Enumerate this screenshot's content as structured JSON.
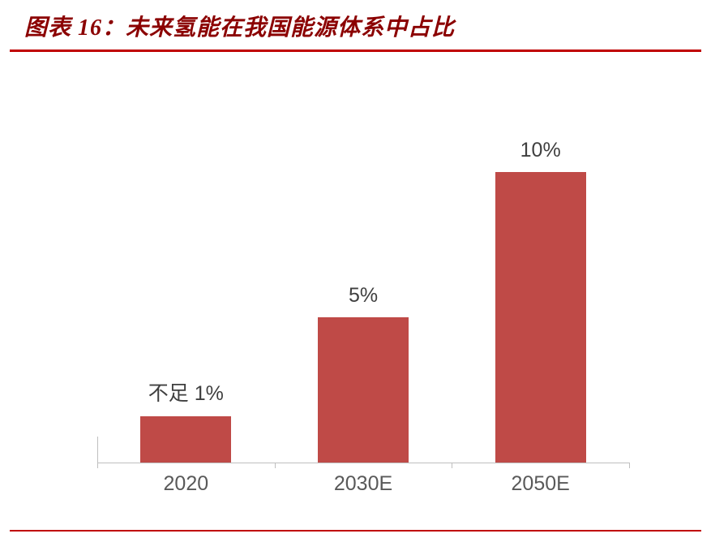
{
  "header": {
    "title": "图表 16：未来氢能在我国能源体系中占比"
  },
  "colors": {
    "bar": "#BF4A47",
    "title": "#8B0000",
    "rule": "#C00000",
    "axis_line": "#BFBFBF",
    "category_label": "#595959",
    "value_label": "#3F3F3F"
  },
  "chart_data": {
    "type": "bar",
    "title": "未来氢能在我国能源体系中占比",
    "categories": [
      "2020",
      "2030E",
      "2050E"
    ],
    "values": [
      1,
      5,
      10
    ],
    "value_labels": [
      "不足 1%",
      "5%",
      "10%"
    ],
    "unit": "%",
    "xlabel": "",
    "ylabel": "",
    "ylim": [
      0,
      12
    ],
    "grid": false,
    "legend": false,
    "render_values": [
      1.6,
      5,
      10
    ]
  }
}
